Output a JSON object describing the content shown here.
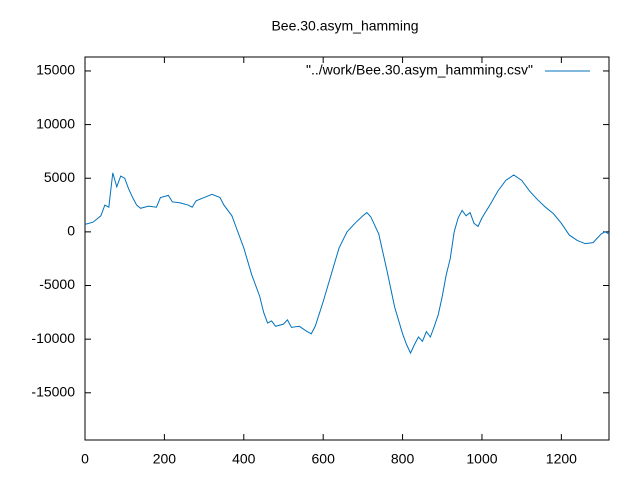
{
  "chart_data": {
    "type": "line",
    "title": "Bee.30.asym_hamming",
    "x": [
      0,
      20,
      40,
      50,
      60,
      70,
      80,
      90,
      100,
      110,
      120,
      130,
      140,
      160,
      180,
      190,
      200,
      210,
      220,
      240,
      260,
      270,
      280,
      300,
      320,
      340,
      350,
      370,
      380,
      400,
      420,
      440,
      450,
      460,
      470,
      480,
      500,
      510,
      520,
      540,
      560,
      570,
      580,
      600,
      620,
      640,
      660,
      680,
      700,
      710,
      720,
      740,
      760,
      780,
      800,
      810,
      820,
      830,
      840,
      850,
      860,
      870,
      880,
      890,
      900,
      910,
      920,
      930,
      940,
      950,
      960,
      970,
      980,
      990,
      1000,
      1020,
      1040,
      1060,
      1080,
      1100,
      1120,
      1140,
      1160,
      1180,
      1200,
      1220,
      1240,
      1260,
      1280,
      1300,
      1310,
      1320
    ],
    "series": [
      {
        "name": "\"../work/Bee.30.asym_hamming.csv\"",
        "color": "#0072bd",
        "values": [
          700,
          900,
          1500,
          2500,
          2300,
          5500,
          4200,
          5200,
          5000,
          4000,
          3200,
          2500,
          2200,
          2400,
          2300,
          3200,
          3300,
          3400,
          2800,
          2700,
          2500,
          2300,
          2900,
          3200,
          3500,
          3200,
          2500,
          1500,
          500,
          -1500,
          -4000,
          -6000,
          -7500,
          -8500,
          -8300,
          -8800,
          -8600,
          -8200,
          -8900,
          -8800,
          -9300,
          -9500,
          -8800,
          -6500,
          -4000,
          -1500,
          0,
          800,
          1500,
          1800,
          1400,
          -200,
          -3500,
          -7000,
          -9500,
          -10500,
          -11300,
          -10500,
          -9800,
          -10200,
          -9300,
          -9800,
          -8800,
          -7700,
          -6000,
          -4000,
          -2500,
          0,
          1300,
          2000,
          1500,
          1800,
          800,
          500,
          1300,
          2500,
          3800,
          4800,
          5300,
          4800,
          3800,
          3000,
          2300,
          1700,
          800,
          -300,
          -800,
          -1100,
          -1000,
          -200,
          0,
          -200
        ]
      }
    ],
    "xlim": [
      0,
      1320
    ],
    "xticks": [
      0,
      200,
      400,
      600,
      800,
      1000,
      1200
    ],
    "ylim": [
      -19400,
      16300
    ],
    "yticks": [
      -15000,
      -10000,
      -5000,
      0,
      5000,
      10000,
      15000
    ]
  }
}
